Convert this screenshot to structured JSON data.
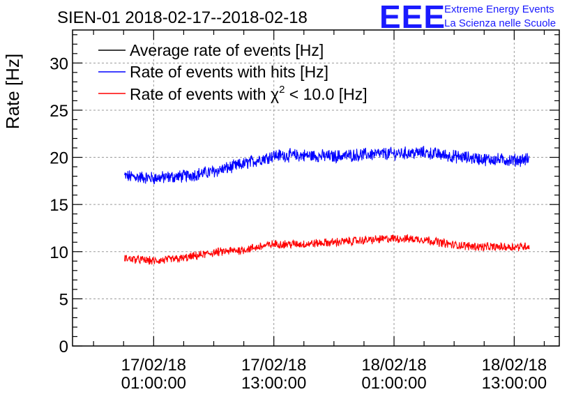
{
  "title": "SIEN-01 2018-02-17--2018-02-18",
  "logo": {
    "mark": "EEE",
    "line1": "Extreme Energy Events",
    "line2": "La Scienza nelle Scuole",
    "color": "#1a1aff"
  },
  "chart_data": {
    "type": "line",
    "title": "SIEN-01 2018-02-17--2018-02-18",
    "xlabel": "",
    "ylabel": "Rate [Hz]",
    "ylim": [
      0,
      33.5
    ],
    "yticks": [
      0,
      5,
      10,
      15,
      20,
      25,
      30
    ],
    "xlim_hours": [
      -8.1,
      40.5
    ],
    "xticks": [
      {
        "line1": "17/02/18",
        "line2": "01:00:00",
        "hour": 0
      },
      {
        "line1": "17/02/18",
        "line2": "13:00:00",
        "hour": 12
      },
      {
        "line1": "18/02/18",
        "line2": "01:00:00",
        "hour": 24
      },
      {
        "line1": "18/02/18",
        "line2": "13:00:00",
        "hour": 36
      }
    ],
    "x_start_hour": -2.9,
    "x_end_hour": 37.5,
    "grid": true,
    "legend_position": "top-left",
    "legend": [
      {
        "name": "Average rate of events [Hz]",
        "color": "#000000"
      },
      {
        "name": "Rate of events with hits [Hz]",
        "color": "#0000ff"
      },
      {
        "name_prefix": "Rate of events with ",
        "name_symbol": "χ",
        "name_sup": "2",
        "name_suffix": " < 10.0 [Hz]",
        "color": "#ff0000"
      }
    ],
    "series": [
      {
        "name": "Rate of events with hits [Hz]",
        "color": "#0000ff",
        "noise": 0.6,
        "x": [
          -2.9,
          0,
          3,
          6,
          9,
          12,
          15,
          18,
          21,
          24,
          27,
          30,
          33,
          36,
          37.5
        ],
        "values": [
          18.0,
          17.8,
          18.0,
          18.5,
          19.3,
          20.2,
          20.2,
          20.1,
          20.3,
          20.4,
          20.5,
          20.1,
          19.8,
          19.7,
          19.8
        ]
      },
      {
        "name": "Rate of events with χ² < 10.0 [Hz]",
        "color": "#ff0000",
        "noise": 0.4,
        "x": [
          -2.9,
          0,
          3,
          6,
          9,
          12,
          15,
          18,
          21,
          24,
          27,
          30,
          33,
          36,
          37.5
        ],
        "values": [
          9.3,
          9.0,
          9.3,
          9.9,
          10.2,
          10.8,
          10.8,
          11.0,
          11.2,
          11.4,
          11.3,
          10.7,
          10.5,
          10.5,
          10.6
        ]
      }
    ]
  }
}
